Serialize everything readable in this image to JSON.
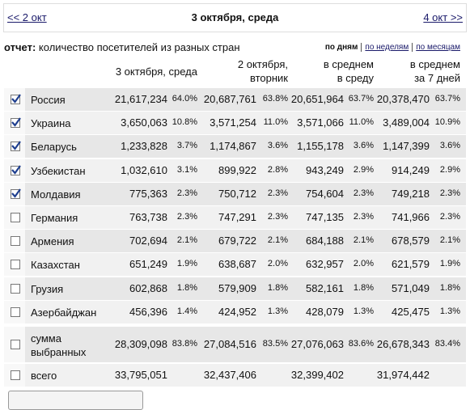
{
  "nav": {
    "prev": "<< 2 окт",
    "title": "3 октября, среда",
    "next": "4 окт >>"
  },
  "report": {
    "label": "отчет:",
    "text": "количество посетителей из разных стран"
  },
  "periods": [
    "по дням",
    "по неделям",
    "по месяцам"
  ],
  "table": {
    "headers": [
      [
        "3 октября, среда"
      ],
      [
        "2 октября,",
        "вторник"
      ],
      [
        "в среднем",
        "в среду"
      ],
      [
        "в среднем",
        "за 7 дней"
      ]
    ],
    "rows": [
      {
        "checked": true,
        "name": "Россия",
        "cells": [
          [
            "21,617,234",
            "64.0%"
          ],
          [
            "20,687,761",
            "63.8%"
          ],
          [
            "20,651,964",
            "63.7%"
          ],
          [
            "20,378,470",
            "63.7%"
          ]
        ]
      },
      {
        "checked": true,
        "name": "Украина",
        "cells": [
          [
            "3,650,063",
            "10.8%"
          ],
          [
            "3,571,254",
            "11.0%"
          ],
          [
            "3,571,066",
            "11.0%"
          ],
          [
            "3,489,004",
            "10.9%"
          ]
        ]
      },
      {
        "checked": true,
        "name": "Беларусь",
        "cells": [
          [
            "1,233,828",
            "3.7%"
          ],
          [
            "1,174,867",
            "3.6%"
          ],
          [
            "1,155,178",
            "3.6%"
          ],
          [
            "1,147,399",
            "3.6%"
          ]
        ]
      },
      {
        "checked": true,
        "name": "Узбекистан",
        "cells": [
          [
            "1,032,610",
            "3.1%"
          ],
          [
            "899,922",
            "2.8%"
          ],
          [
            "943,249",
            "2.9%"
          ],
          [
            "914,249",
            "2.9%"
          ]
        ]
      },
      {
        "checked": true,
        "name": "Молдавия",
        "cells": [
          [
            "775,363",
            "2.3%"
          ],
          [
            "750,712",
            "2.3%"
          ],
          [
            "754,604",
            "2.3%"
          ],
          [
            "749,218",
            "2.3%"
          ]
        ]
      },
      {
        "checked": false,
        "name": "Германия",
        "cells": [
          [
            "763,738",
            "2.3%"
          ],
          [
            "747,291",
            "2.3%"
          ],
          [
            "747,135",
            "2.3%"
          ],
          [
            "741,966",
            "2.3%"
          ]
        ]
      },
      {
        "checked": false,
        "name": "Армения",
        "cells": [
          [
            "702,694",
            "2.1%"
          ],
          [
            "679,722",
            "2.1%"
          ],
          [
            "684,188",
            "2.1%"
          ],
          [
            "678,579",
            "2.1%"
          ]
        ]
      },
      {
        "checked": false,
        "name": "Казахстан",
        "cells": [
          [
            "651,249",
            "1.9%"
          ],
          [
            "638,687",
            "2.0%"
          ],
          [
            "632,957",
            "2.0%"
          ],
          [
            "621,579",
            "1.9%"
          ]
        ]
      },
      {
        "checked": false,
        "name": "Грузия",
        "cells": [
          [
            "602,868",
            "1.8%"
          ],
          [
            "579,909",
            "1.8%"
          ],
          [
            "582,161",
            "1.8%"
          ],
          [
            "571,049",
            "1.8%"
          ]
        ]
      },
      {
        "checked": false,
        "name": "Азербайджан",
        "cells": [
          [
            "456,396",
            "1.4%"
          ],
          [
            "424,952",
            "1.3%"
          ],
          [
            "428,079",
            "1.3%"
          ],
          [
            "425,475",
            "1.3%"
          ]
        ]
      }
    ],
    "sum": {
      "checked": false,
      "name": "сумма выбранных",
      "cells": [
        [
          "28,309,098",
          "83.8%"
        ],
        [
          "27,084,516",
          "83.5%"
        ],
        [
          "27,076,063",
          "83.6%"
        ],
        [
          "26,678,343",
          "83.4%"
        ]
      ]
    },
    "total": {
      "checked": false,
      "name": "всего",
      "cells": [
        "33,795,051",
        "32,437,406",
        "32,399,402",
        "31,974,442"
      ]
    }
  }
}
